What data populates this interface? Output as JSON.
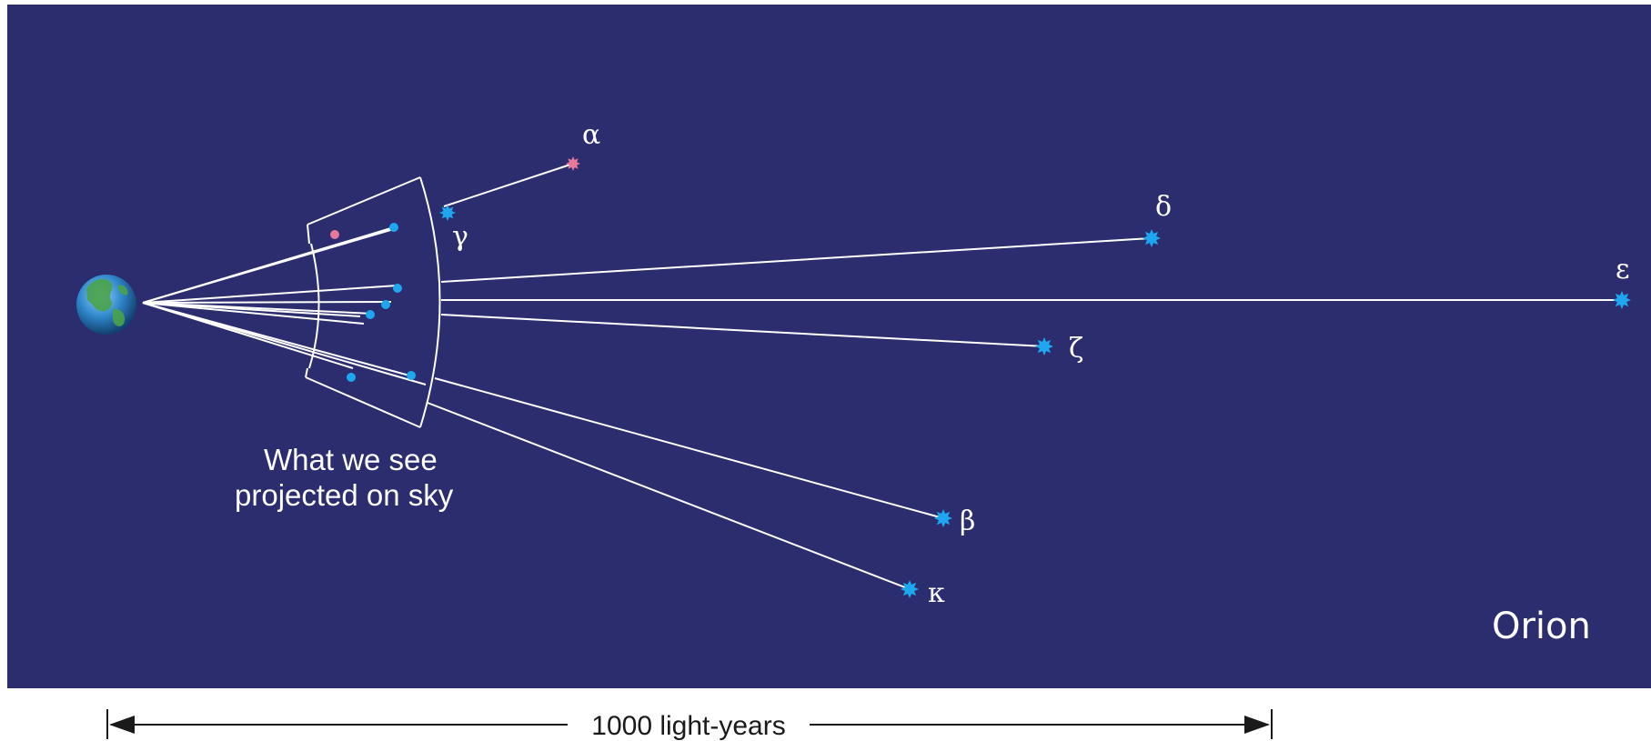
{
  "colors": {
    "background": "#2b2d6e",
    "line": "#ffffff",
    "blue_star": "#1ea6ef",
    "red_star": "#e8789c",
    "scale_bar": "#1a1a1a"
  },
  "labels": {
    "constellation": "Orion",
    "caption_line1": "What we see",
    "caption_line2": "projected on sky",
    "scale": "1000 light-years"
  },
  "stars": [
    {
      "id": "alpha",
      "label": "α",
      "color": "red"
    },
    {
      "id": "gamma",
      "label": "γ",
      "color": "blue"
    },
    {
      "id": "delta",
      "label": "δ",
      "color": "blue"
    },
    {
      "id": "epsilon",
      "label": "ε",
      "color": "blue"
    },
    {
      "id": "zeta",
      "label": "ζ",
      "color": "blue"
    },
    {
      "id": "beta",
      "label": "β",
      "color": "blue"
    },
    {
      "id": "kappa",
      "label": "κ",
      "color": "blue"
    }
  ],
  "icons": {
    "earth": "earth-globe-icon",
    "star": "star-burst-icon"
  }
}
